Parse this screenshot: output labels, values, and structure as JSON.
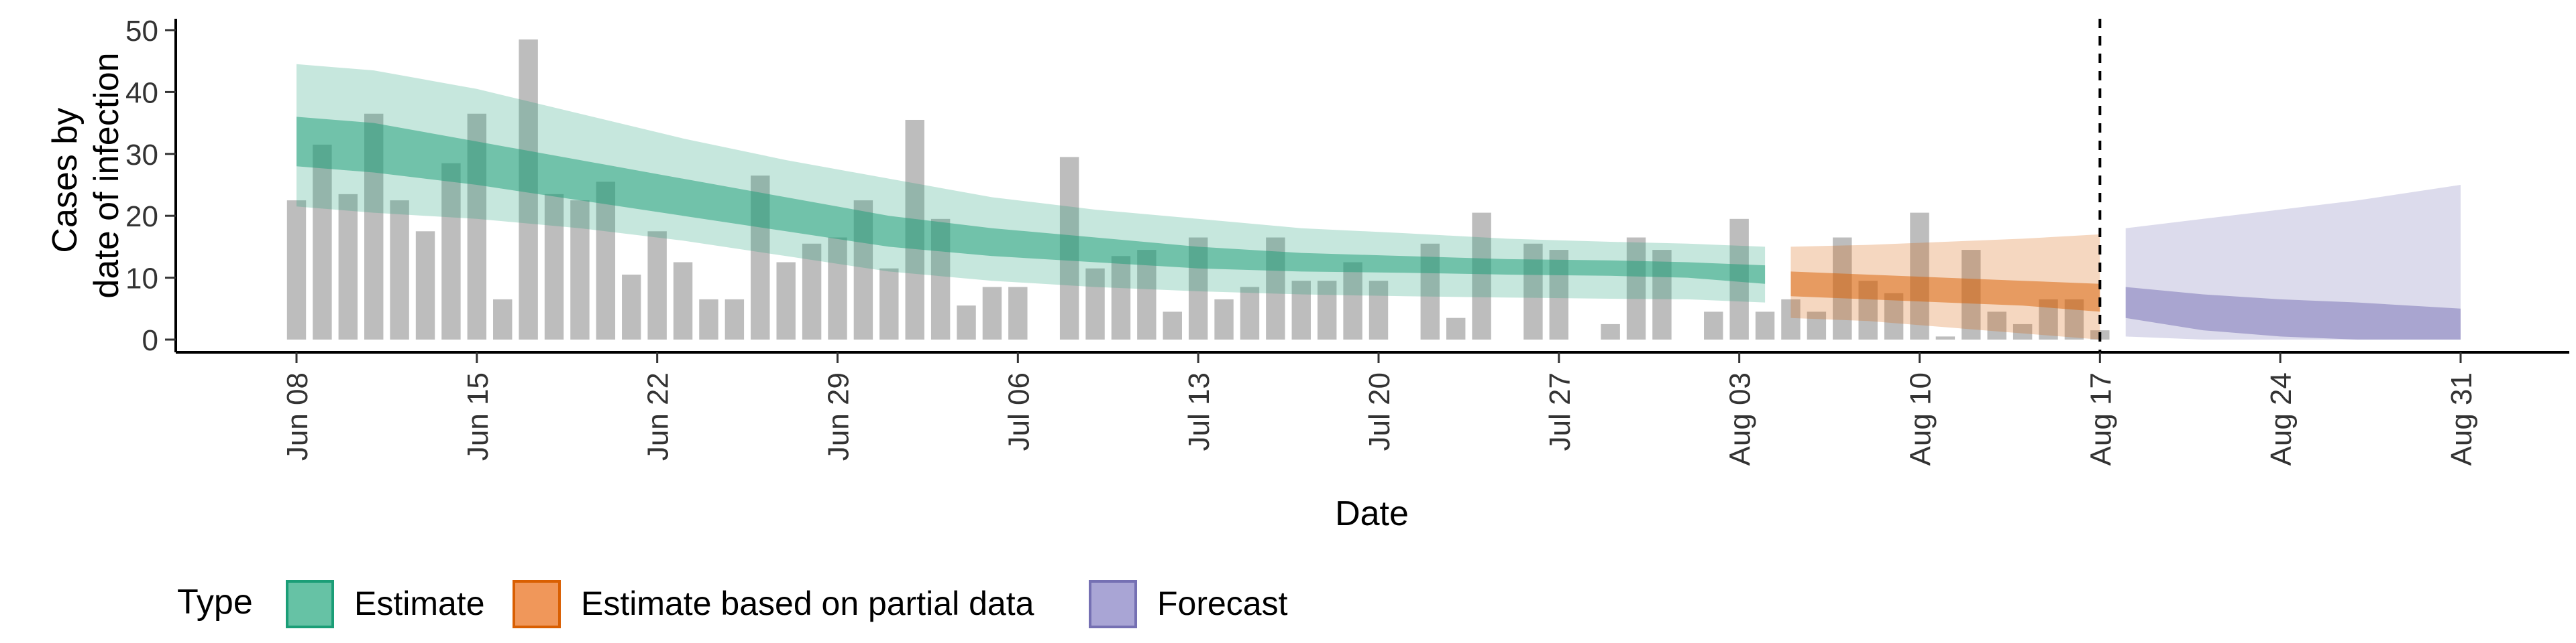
{
  "chart_data": {
    "type": "bar",
    "title": "",
    "xlabel": "Date",
    "ylabel_lines": [
      "Cases by",
      "date of infection"
    ],
    "ylim": [
      0,
      50
    ],
    "y_ticks": [
      0,
      10,
      20,
      30,
      40,
      50
    ],
    "x_range": [
      "2020-06-08",
      "2020-08-31"
    ],
    "x_ticks": [
      {
        "date": "2020-06-08",
        "label": "Jun 08"
      },
      {
        "date": "2020-06-15",
        "label": "Jun 15"
      },
      {
        "date": "2020-06-22",
        "label": "Jun 22"
      },
      {
        "date": "2020-06-29",
        "label": "Jun 29"
      },
      {
        "date": "2020-07-06",
        "label": "Jul 06"
      },
      {
        "date": "2020-07-13",
        "label": "Jul 13"
      },
      {
        "date": "2020-07-20",
        "label": "Jul 20"
      },
      {
        "date": "2020-07-27",
        "label": "Jul 27"
      },
      {
        "date": "2020-08-03",
        "label": "Aug 03"
      },
      {
        "date": "2020-08-10",
        "label": "Aug 10"
      },
      {
        "date": "2020-08-17",
        "label": "Aug 17"
      },
      {
        "date": "2020-08-24",
        "label": "Aug 24"
      },
      {
        "date": "2020-08-31",
        "label": "Aug 31"
      }
    ],
    "reference_line": {
      "date": "2020-08-17",
      "style": "dashed"
    },
    "bars": {
      "dates": [
        "2020-06-08",
        "2020-06-09",
        "2020-06-10",
        "2020-06-11",
        "2020-06-12",
        "2020-06-13",
        "2020-06-14",
        "2020-06-15",
        "2020-06-16",
        "2020-06-17",
        "2020-06-18",
        "2020-06-19",
        "2020-06-20",
        "2020-06-21",
        "2020-06-22",
        "2020-06-23",
        "2020-06-24",
        "2020-06-25",
        "2020-06-26",
        "2020-06-27",
        "2020-06-28",
        "2020-06-29",
        "2020-06-30",
        "2020-07-01",
        "2020-07-02",
        "2020-07-03",
        "2020-07-04",
        "2020-07-05",
        "2020-07-06",
        "2020-07-07",
        "2020-07-08",
        "2020-07-09",
        "2020-07-10",
        "2020-07-11",
        "2020-07-12",
        "2020-07-13",
        "2020-07-14",
        "2020-07-15",
        "2020-07-16",
        "2020-07-17",
        "2020-07-18",
        "2020-07-19",
        "2020-07-20",
        "2020-07-21",
        "2020-07-22",
        "2020-07-23",
        "2020-07-24",
        "2020-07-25",
        "2020-07-26",
        "2020-07-27",
        "2020-07-28",
        "2020-07-29",
        "2020-07-30",
        "2020-07-31",
        "2020-08-01",
        "2020-08-02",
        "2020-08-03",
        "2020-08-04",
        "2020-08-05",
        "2020-08-06",
        "2020-08-07",
        "2020-08-08",
        "2020-08-09",
        "2020-08-10",
        "2020-08-11",
        "2020-08-12",
        "2020-08-13",
        "2020-08-14",
        "2020-08-15",
        "2020-08-16",
        "2020-08-17"
      ],
      "values": [
        22.5,
        31.5,
        23.5,
        36.5,
        22.5,
        17.5,
        28.5,
        36.5,
        6.5,
        48.5,
        23.5,
        22.5,
        25.5,
        10.5,
        17.5,
        12.5,
        6.5,
        6.5,
        26.5,
        12.5,
        15.5,
        16.5,
        22.5,
        11.5,
        35.5,
        19.5,
        5.5,
        8.5,
        8.5,
        0,
        29.5,
        11.5,
        13.5,
        14.5,
        4.5,
        16.5,
        6.5,
        8.5,
        16.5,
        9.5,
        9.5,
        12.5,
        9.5,
        0,
        15.5,
        3.5,
        20.5,
        0,
        15.5,
        14.5,
        0,
        2.5,
        16.5,
        14.5,
        0,
        4.5,
        19.5,
        4.5,
        6.5,
        4.5,
        16.5,
        9.5,
        7.5,
        20.5,
        0.5,
        14.5,
        4.5,
        2.5,
        6.5,
        6.5,
        1.5
      ]
    },
    "series": [
      {
        "name": "Estimate",
        "color": "#1b9e77",
        "dates": [
          "2020-06-08",
          "2020-06-11",
          "2020-06-15",
          "2020-06-19",
          "2020-06-23",
          "2020-06-27",
          "2020-07-01",
          "2020-07-05",
          "2020-07-09",
          "2020-07-13",
          "2020-07-17",
          "2020-07-21",
          "2020-07-25",
          "2020-07-29",
          "2020-08-01",
          "2020-08-04"
        ],
        "outer_upper": [
          44.5,
          43.5,
          40.5,
          36.5,
          32.5,
          29.0,
          26.0,
          23.0,
          21.0,
          19.5,
          18.0,
          17.2,
          16.3,
          15.8,
          15.5,
          15.0
        ],
        "inner_upper": [
          36.0,
          35.0,
          32.0,
          29.0,
          26.0,
          23.0,
          20.0,
          18.0,
          16.5,
          15.0,
          14.0,
          13.5,
          13.0,
          12.8,
          12.5,
          12.0
        ],
        "inner_lower": [
          28.0,
          27.0,
          25.0,
          22.5,
          20.0,
          17.5,
          15.0,
          13.5,
          12.5,
          11.5,
          11.0,
          10.8,
          10.5,
          10.3,
          10.0,
          9.0
        ],
        "outer_lower": [
          21.5,
          20.5,
          19.5,
          18.0,
          16.0,
          13.5,
          11.0,
          9.5,
          8.5,
          7.8,
          7.3,
          7.0,
          6.8,
          6.6,
          6.5,
          6.0
        ]
      },
      {
        "name": "Estimate based on partial data",
        "color": "#d95f02",
        "dates": [
          "2020-08-05",
          "2020-08-08",
          "2020-08-11",
          "2020-08-14",
          "2020-08-17"
        ],
        "outer_upper": [
          15.0,
          15.3,
          15.8,
          16.3,
          17.0
        ],
        "inner_upper": [
          11.0,
          10.5,
          10.0,
          9.5,
          9.0
        ],
        "inner_lower": [
          7.0,
          6.5,
          6.0,
          5.5,
          4.5
        ],
        "outer_lower": [
          3.5,
          3.0,
          2.0,
          1.0,
          0.0
        ]
      },
      {
        "name": "Forecast",
        "color": "#7570b3",
        "dates": [
          "2020-08-18",
          "2020-08-21",
          "2020-08-24",
          "2020-08-27",
          "2020-08-31"
        ],
        "outer_upper": [
          18.0,
          19.5,
          21.0,
          22.5,
          25.0
        ],
        "inner_upper": [
          8.5,
          7.3,
          6.5,
          6.0,
          5.0
        ],
        "inner_lower": [
          3.5,
          1.5,
          0.5,
          0.0,
          0.0
        ],
        "outer_lower": [
          0.5,
          0.0,
          0.0,
          0.0,
          0.0
        ]
      }
    ],
    "legend": {
      "position": "bottom",
      "title": "Type",
      "items": [
        {
          "label": "Estimate",
          "fill": "#66c2a5",
          "border": "#1b9e77"
        },
        {
          "label": "Estimate based on partial data",
          "fill": "#f0975a",
          "border": "#d95f02"
        },
        {
          "label": "Forecast",
          "fill": "#a9a5d5",
          "border": "#7570b3"
        }
      ]
    },
    "grid": false
  }
}
